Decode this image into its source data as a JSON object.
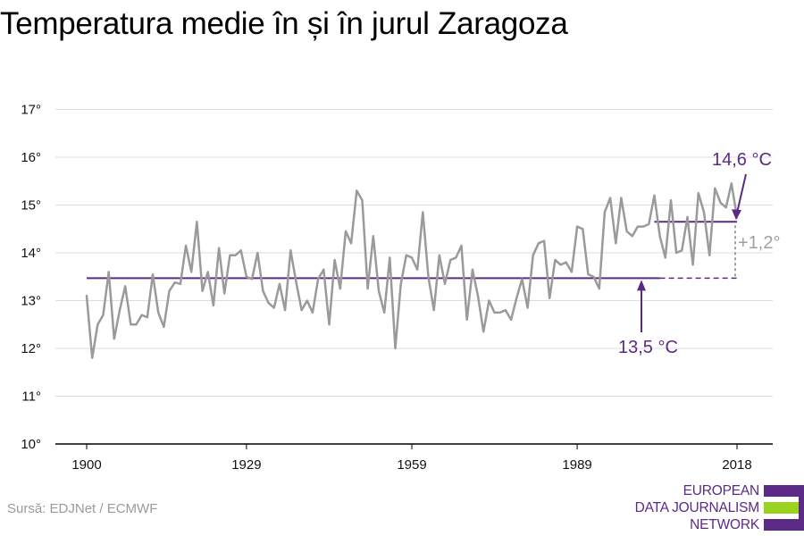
{
  "title": "Temperatura medie în și în jurul Zaragoza",
  "source": "Sursă: EDJNet / ECMWF",
  "logo": {
    "lines": [
      "EUROPEAN",
      "DATA JOURNALISM",
      "NETWORK"
    ],
    "colors": [
      "#5b2a86",
      "#9ad21f",
      "#5b2a86"
    ]
  },
  "colors": {
    "series": "#9a9a9a",
    "accent": "#5b2a86",
    "delta": "#a0a0a0",
    "grid": "#dddddd",
    "axis": "#000000"
  },
  "chart_data": {
    "type": "line",
    "title": "Temperatura medie în și în jurul Zaragoza",
    "xlabel": "",
    "ylabel": "",
    "xlim": [
      1900,
      2018
    ],
    "ylim": [
      10,
      17
    ],
    "x_ticks": [
      1900,
      1929,
      1959,
      1989,
      2018
    ],
    "x_tick_labels": [
      "1900",
      "1929",
      "1959",
      "1989",
      "2018"
    ],
    "y_ticks": [
      10,
      11,
      12,
      13,
      14,
      15,
      16,
      17
    ],
    "y_tick_labels": [
      "10°",
      "11°",
      "12°",
      "13°",
      "14°",
      "15°",
      "16°",
      "17°"
    ],
    "grid": true,
    "series": [
      {
        "x_start": 1900,
        "x_step": 1,
        "values": [
          13.1,
          11.8,
          12.5,
          12.7,
          13.6,
          12.2,
          12.8,
          13.3,
          12.5,
          12.5,
          12.7,
          12.65,
          13.55,
          12.75,
          12.45,
          13.2,
          13.38,
          13.35,
          14.15,
          13.6,
          14.65,
          13.2,
          13.6,
          12.9,
          14.1,
          13.15,
          13.95,
          13.95,
          14.05,
          13.5,
          13.45,
          14.0,
          13.2,
          12.95,
          12.85,
          13.35,
          12.8,
          14.05,
          13.4,
          12.8,
          13.0,
          12.75,
          13.45,
          13.65,
          12.5,
          13.85,
          13.25,
          14.45,
          14.2,
          15.3,
          15.1,
          13.25,
          14.35,
          13.2,
          12.75,
          13.9,
          12.0,
          13.35,
          13.95,
          13.9,
          13.65,
          14.85,
          13.5,
          12.8,
          13.95,
          13.35,
          13.85,
          13.9,
          14.15,
          12.6,
          13.65,
          13.1,
          12.35,
          13.0,
          12.75,
          12.75,
          12.8,
          12.6,
          13.05,
          13.45,
          12.85,
          13.95,
          14.2,
          14.25,
          13.05,
          13.85,
          13.75,
          13.8,
          13.6,
          14.55,
          14.5,
          13.55,
          13.5,
          13.25,
          14.85,
          15.15,
          14.2,
          15.15,
          14.45,
          14.35,
          14.55,
          14.55,
          14.6,
          15.2,
          14.35,
          13.9,
          15.1,
          14.0,
          14.05,
          14.75,
          13.75,
          15.25,
          14.85,
          13.95,
          15.35,
          15.05,
          14.95,
          15.45,
          14.75
        ]
      }
    ],
    "reference_lines": [
      {
        "label": "13,5 °C",
        "value": 13.47,
        "x_start": 1900,
        "x_end": 2018,
        "solid_until": 2004
      },
      {
        "label": "14,6 °C",
        "value": 14.65,
        "x_start": 2003,
        "x_end": 2018
      }
    ],
    "difference_label": "+1,2°"
  }
}
